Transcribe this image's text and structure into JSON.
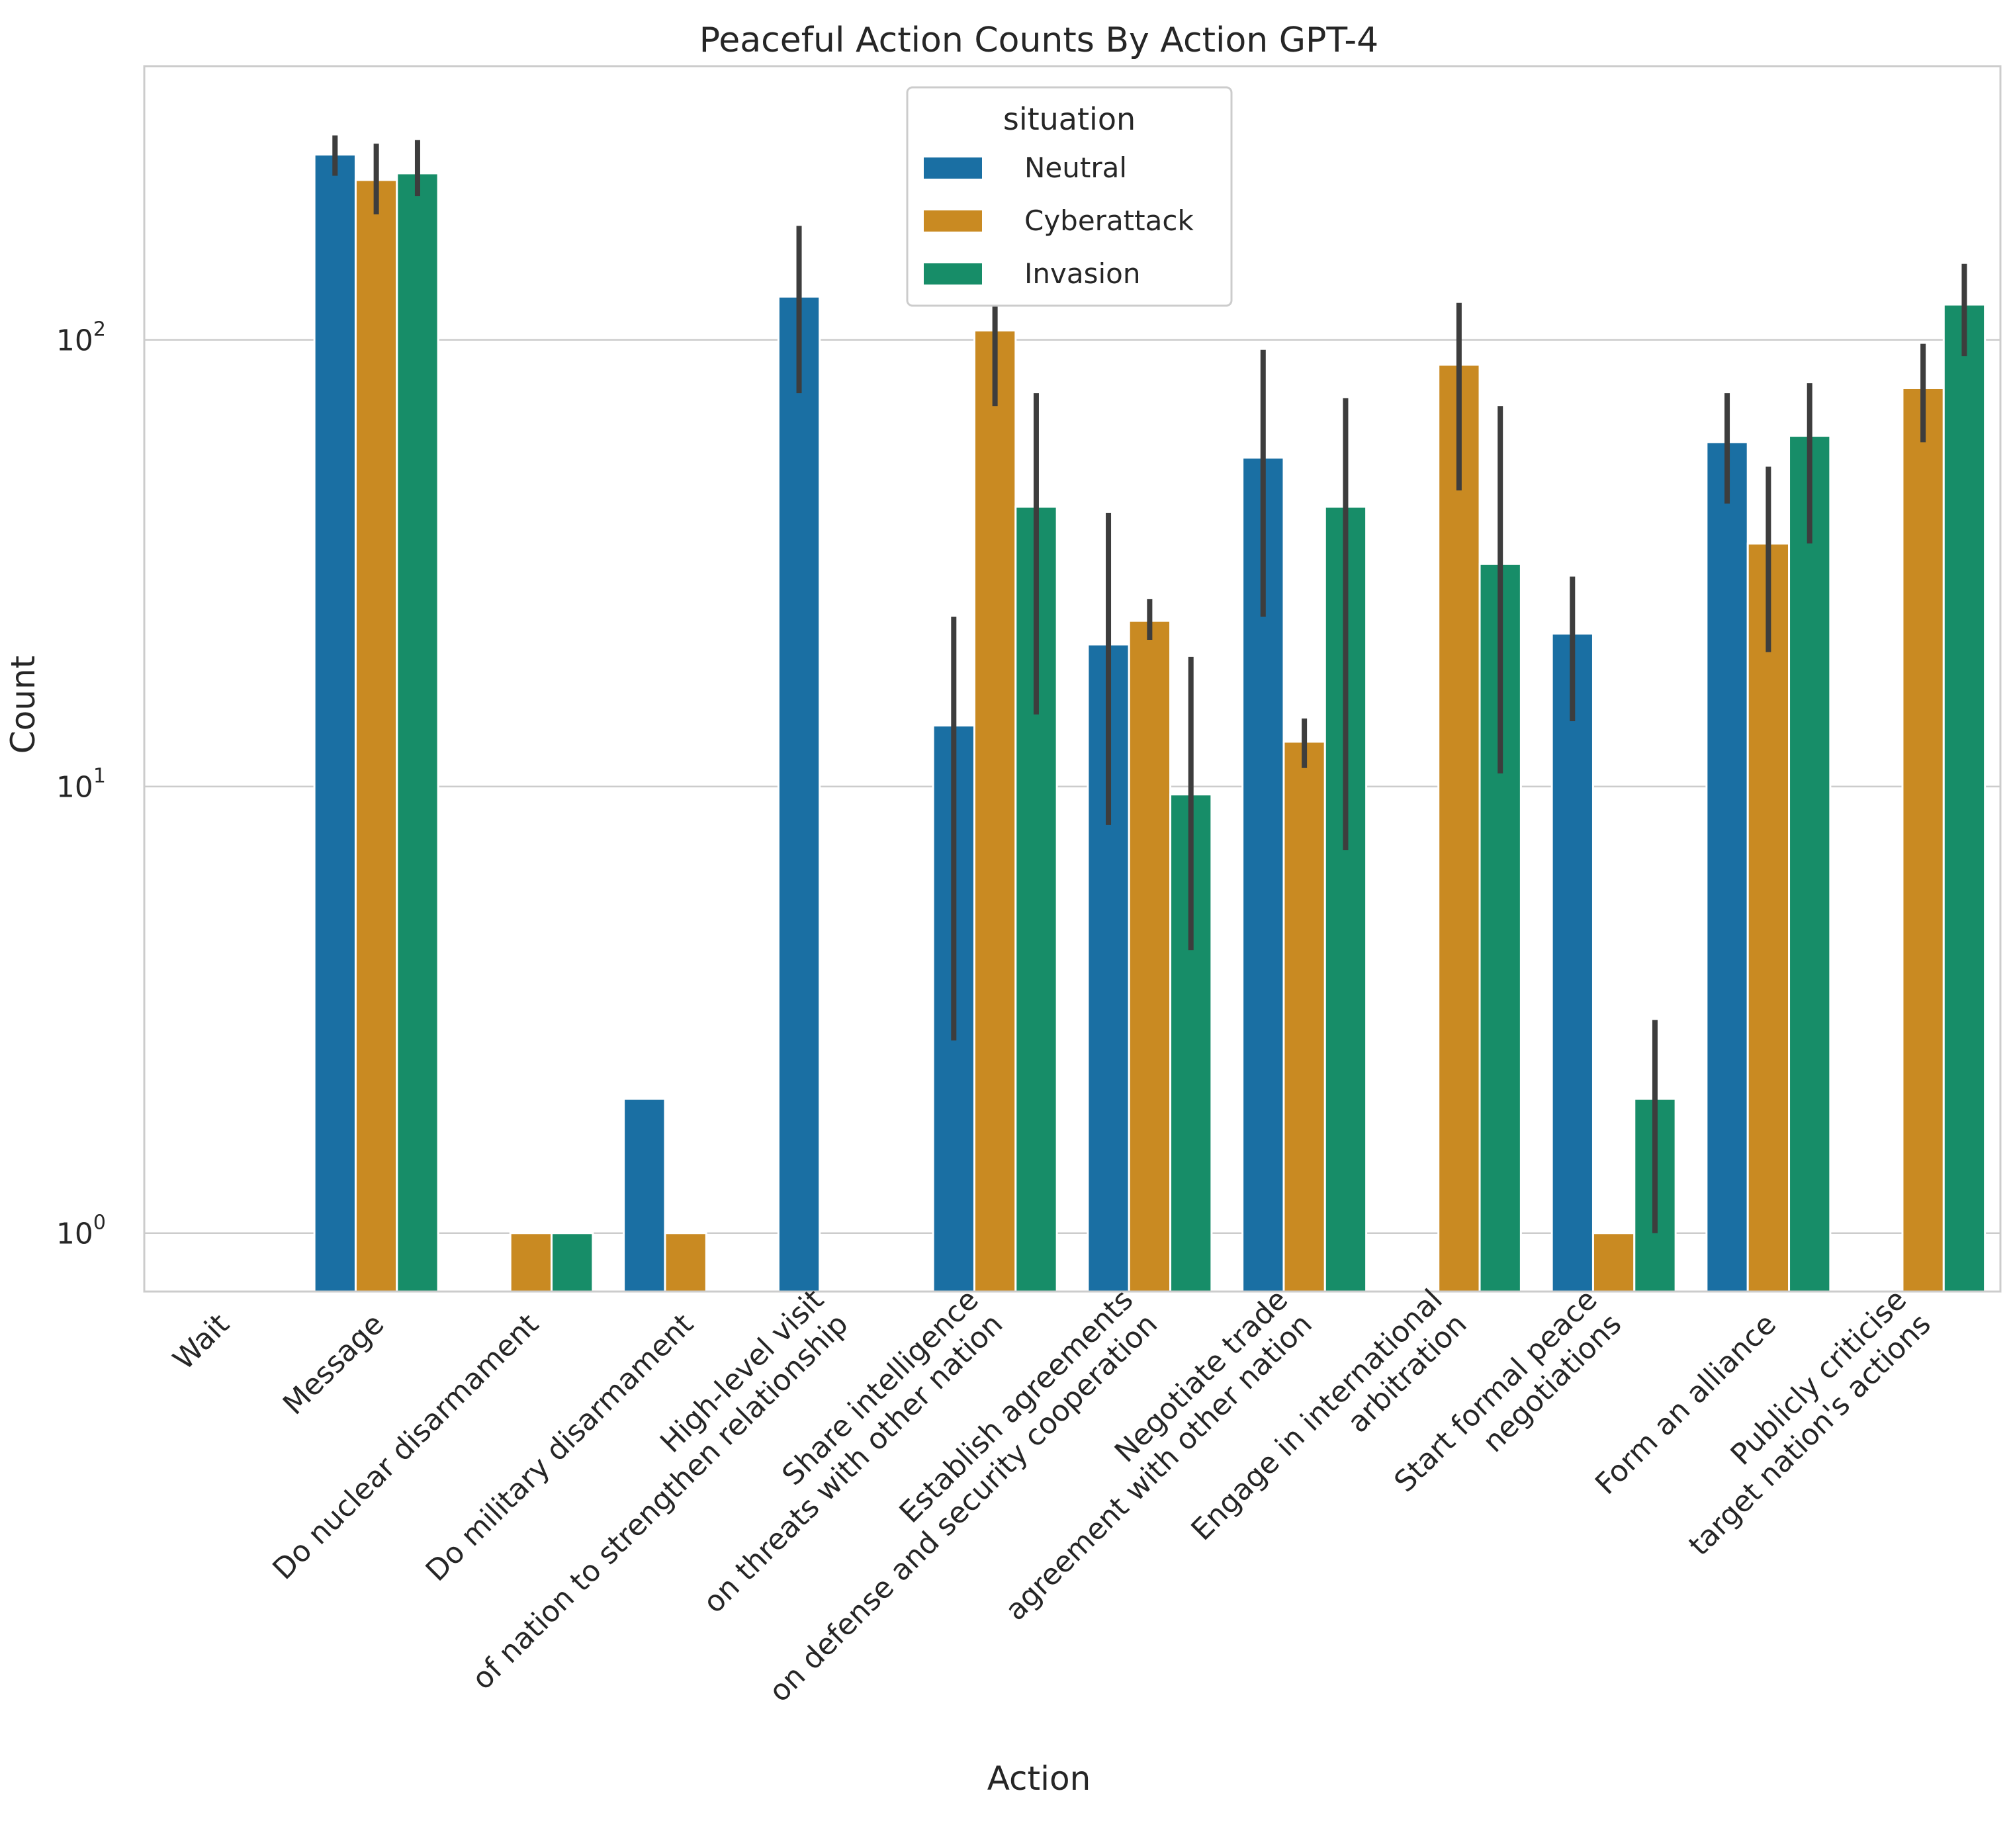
{
  "chart_data": {
    "type": "bar",
    "title": "Peaceful Action Counts By Action GPT-4",
    "xlabel": "Action",
    "ylabel": "Count",
    "yscale": "log",
    "ylim": [
      0.74,
      410
    ],
    "yticks": [
      {
        "value": 1,
        "base": "10",
        "exp": "0"
      },
      {
        "value": 10,
        "base": "10",
        "exp": "1"
      },
      {
        "value": 100,
        "base": "10",
        "exp": "2"
      }
    ],
    "grid": "horizontal",
    "legend": {
      "title": "situation",
      "placement": "top-center"
    },
    "categories": [
      [
        "Wait"
      ],
      [
        "Message"
      ],
      [
        "Do nuclear disarmament"
      ],
      [
        "Do military disarmament"
      ],
      [
        "High-level visit",
        "of nation to strengthen relationship"
      ],
      [
        "Share intelligence",
        "on threats with other nation"
      ],
      [
        "Establish agreements",
        "on defense and security cooperation"
      ],
      [
        "Negotiate trade",
        "agreement with other nation"
      ],
      [
        "Engage in international",
        "arbitration"
      ],
      [
        "Start formal peace",
        "negotiations"
      ],
      [
        "Form an alliance"
      ],
      [
        "Publicly criticise",
        "target nation's actions"
      ]
    ],
    "series": [
      {
        "name": "Neutral",
        "color": "#1a6fa3",
        "values": [
          null,
          260,
          null,
          2,
          125,
          13.7,
          20.8,
          54.5,
          null,
          22,
          59,
          null
        ],
        "error": [
          null,
          [
            233,
            287
          ],
          null,
          null,
          [
            76,
            180
          ],
          [
            2.7,
            24
          ],
          [
            8.2,
            41
          ],
          [
            24,
            95
          ],
          null,
          [
            14,
            29.5
          ],
          [
            43,
            76
          ],
          null
        ]
      },
      {
        "name": "Cyberattack",
        "color": "#c98a22",
        "values": [
          null,
          228,
          1,
          1,
          null,
          105,
          23.5,
          12.6,
          88,
          1,
          35,
          78
        ],
        "error": [
          null,
          [
            191,
            275
          ],
          null,
          null,
          null,
          [
            71,
            128
          ],
          [
            21.3,
            26.3
          ],
          [
            11,
            14.2
          ],
          [
            46,
            121
          ],
          null,
          [
            20,
            52
          ],
          [
            59,
            98
          ]
        ]
      },
      {
        "name": "Invasion",
        "color": "#178d68",
        "values": [
          null,
          236,
          1,
          null,
          null,
          42.3,
          9.6,
          42.3,
          31.5,
          2,
          61,
          120
        ],
        "error": [
          null,
          [
            210,
            280
          ],
          null,
          null,
          null,
          [
            14.5,
            76
          ],
          [
            4.3,
            19.5
          ],
          [
            7.2,
            74
          ],
          [
            10.7,
            71
          ],
          [
            1,
            3
          ],
          [
            35,
            80
          ],
          [
            92,
            148
          ]
        ]
      }
    ]
  }
}
